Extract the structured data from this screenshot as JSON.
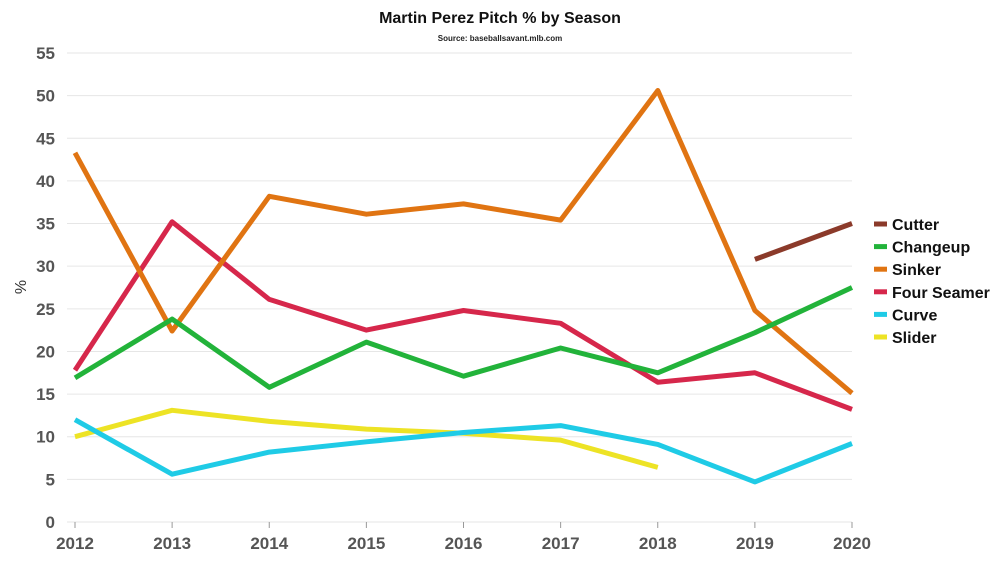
{
  "chart_data": {
    "type": "line",
    "title": "Martin Perez Pitch % by Season",
    "subtitle": "Source: baseballsavant.mlb.com",
    "xlabel": "",
    "ylabel": "%",
    "x": [
      "2012",
      "2013",
      "2014",
      "2015",
      "2016",
      "2017",
      "2018",
      "2019",
      "2020"
    ],
    "ylim": [
      0,
      55
    ],
    "yticks": [
      0,
      5,
      10,
      15,
      20,
      25,
      30,
      35,
      40,
      45,
      50,
      55
    ],
    "grid": true,
    "legend_position": "right",
    "series": [
      {
        "name": "Cutter",
        "color": "#8B3A2A",
        "values": [
          null,
          null,
          null,
          null,
          null,
          null,
          null,
          30.8,
          35.0
        ]
      },
      {
        "name": "Changeup",
        "color": "#22B33A",
        "values": [
          16.9,
          23.8,
          15.8,
          21.1,
          17.1,
          20.4,
          17.5,
          22.2,
          27.5
        ]
      },
      {
        "name": "Sinker",
        "color": "#E07412",
        "values": [
          43.3,
          22.4,
          38.2,
          36.1,
          37.3,
          35.4,
          50.6,
          24.8,
          15.1
        ]
      },
      {
        "name": "Four Seamer",
        "color": "#D6274B",
        "values": [
          17.8,
          35.2,
          26.1,
          22.5,
          24.8,
          23.3,
          16.4,
          17.5,
          13.2
        ]
      },
      {
        "name": "Curve",
        "color": "#1FCBE6",
        "values": [
          12.0,
          5.6,
          8.2,
          9.4,
          10.5,
          11.3,
          9.1,
          4.7,
          9.2
        ]
      },
      {
        "name": "Slider",
        "color": "#EDE325",
        "values": [
          10.0,
          13.1,
          11.8,
          10.9,
          10.4,
          9.6,
          6.4,
          null,
          null
        ]
      }
    ]
  }
}
